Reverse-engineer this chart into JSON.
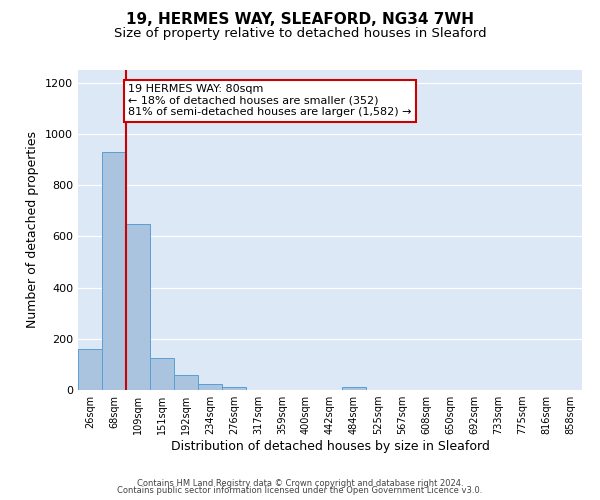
{
  "title": "19, HERMES WAY, SLEAFORD, NG34 7WH",
  "subtitle": "Size of property relative to detached houses in Sleaford",
  "xlabel": "Distribution of detached houses by size in Sleaford",
  "ylabel": "Number of detached properties",
  "bar_labels": [
    "26sqm",
    "68sqm",
    "109sqm",
    "151sqm",
    "192sqm",
    "234sqm",
    "276sqm",
    "317sqm",
    "359sqm",
    "400sqm",
    "442sqm",
    "484sqm",
    "525sqm",
    "567sqm",
    "608sqm",
    "650sqm",
    "692sqm",
    "733sqm",
    "775sqm",
    "816sqm",
    "858sqm"
  ],
  "bar_values": [
    160,
    930,
    650,
    125,
    60,
    25,
    10,
    0,
    0,
    0,
    0,
    10,
    0,
    0,
    0,
    0,
    0,
    0,
    0,
    0,
    0
  ],
  "bar_color": "#aac4e0",
  "bar_edge_color": "#5a9fd4",
  "bar_width": 1.0,
  "vline_x": 1.5,
  "vline_color": "#cc0000",
  "annotation_line1": "19 HERMES WAY: 80sqm",
  "annotation_line2": "← 18% of detached houses are smaller (352)",
  "annotation_line3": "81% of semi-detached houses are larger (1,582) →",
  "annotation_box_edgecolor": "#cc0000",
  "annotation_box_facecolor": "#ffffff",
  "ylim": [
    0,
    1250
  ],
  "yticks": [
    0,
    200,
    400,
    600,
    800,
    1000,
    1200
  ],
  "bg_color": "#dce8f5",
  "footer_line1": "Contains HM Land Registry data © Crown copyright and database right 2024.",
  "footer_line2": "Contains public sector information licensed under the Open Government Licence v3.0.",
  "title_fontsize": 11,
  "subtitle_fontsize": 9.5,
  "xlabel_fontsize": 9,
  "ylabel_fontsize": 9,
  "tick_fontsize": 7,
  "annotation_fontsize": 8,
  "footer_fontsize": 6
}
